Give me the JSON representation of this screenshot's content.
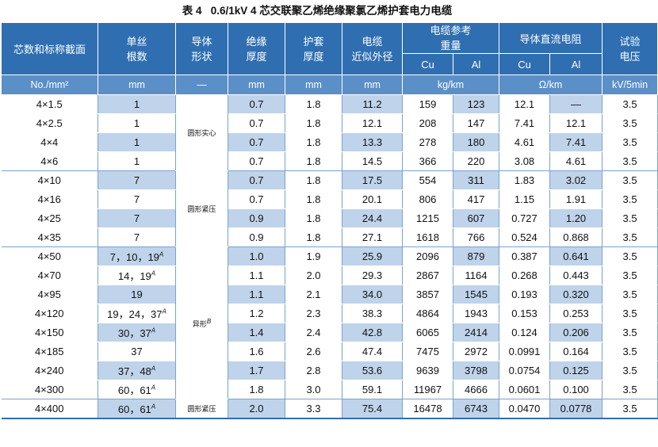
{
  "caption": {
    "label": "表 4",
    "title": "0.6/1kV 4 芯交联聚乙烯绝缘聚氯乙烯护套电力电缆"
  },
  "header": {
    "core_section": "芯数和标称截面",
    "wire_count_l1": "单丝",
    "wire_count_l2": "根数",
    "conductor_shape_l1": "导体",
    "conductor_shape_l2": "形状",
    "insulation_l1": "绝缘",
    "insulation_l2": "厚度",
    "sheath_l1": "护套",
    "sheath_l2": "厚度",
    "diameter_l1": "电缆",
    "diameter_l2": "近似外径",
    "weight_l1": "电缆参考",
    "weight_l2": "重量",
    "resistance": "导体直流电阻",
    "voltage_l1": "试验",
    "voltage_l2": "电压",
    "cu": "Cu",
    "al": "Al",
    "cu2": "Cu",
    "al2": "Al"
  },
  "units": {
    "section": "No./mm²",
    "wire_count": "mm",
    "shape": "—",
    "insulation": "mm",
    "sheath": "mm",
    "diameter": "mm",
    "weight": "kg/km",
    "resistance": "Ω/km",
    "voltage": "kV/5min"
  },
  "shape_labels": {
    "solid": "圆形实心",
    "compact": "圆形紧压",
    "sector": "异形",
    "sector_sup": "B",
    "compact_last": "圆形紧压"
  },
  "rows": [
    {
      "section": "4×1.5",
      "wires": "1",
      "wsup": "",
      "ins": "0.7",
      "sh": "1.8",
      "dia": "11.2",
      "cu": "159",
      "al": "123",
      "rcu": "12.1",
      "ral": "—",
      "v": "3.5"
    },
    {
      "section": "4×2.5",
      "wires": "1",
      "wsup": "",
      "ins": "0.7",
      "sh": "1.8",
      "dia": "12.1",
      "cu": "208",
      "al": "147",
      "rcu": "7.41",
      "ral": "12.1",
      "v": "3.5"
    },
    {
      "section": "4×4",
      "wires": "1",
      "wsup": "",
      "ins": "0.7",
      "sh": "1.8",
      "dia": "13.3",
      "cu": "278",
      "al": "180",
      "rcu": "4.61",
      "ral": "7.41",
      "v": "3.5"
    },
    {
      "section": "4×6",
      "wires": "1",
      "wsup": "",
      "ins": "0.7",
      "sh": "1.8",
      "dia": "14.5",
      "cu": "366",
      "al": "220",
      "rcu": "3.08",
      "ral": "4.61",
      "v": "3.5"
    },
    {
      "section": "4×10",
      "wires": "7",
      "wsup": "",
      "ins": "0.7",
      "sh": "1.8",
      "dia": "17.5",
      "cu": "554",
      "al": "311",
      "rcu": "1.83",
      "ral": "3.02",
      "v": "3.5"
    },
    {
      "section": "4×16",
      "wires": "7",
      "wsup": "",
      "ins": "0.7",
      "sh": "1.8",
      "dia": "20.1",
      "cu": "806",
      "al": "417",
      "rcu": "1.15",
      "ral": "1.91",
      "v": "3.5"
    },
    {
      "section": "4×25",
      "wires": "7",
      "wsup": "",
      "ins": "0.9",
      "sh": "1.8",
      "dia": "24.4",
      "cu": "1215",
      "al": "607",
      "rcu": "0.727",
      "ral": "1.20",
      "v": "3.5"
    },
    {
      "section": "4×35",
      "wires": "7",
      "wsup": "",
      "ins": "0.9",
      "sh": "1.8",
      "dia": "27.1",
      "cu": "1618",
      "al": "766",
      "rcu": "0.524",
      "ral": "0.868",
      "v": "3.5"
    },
    {
      "section": "4×50",
      "wires": "7，10，19",
      "wsup": "A",
      "ins": "1.0",
      "sh": "1.9",
      "dia": "25.9",
      "cu": "2096",
      "al": "879",
      "rcu": "0.387",
      "ral": "0.641",
      "v": "3.5"
    },
    {
      "section": "4×70",
      "wires": "14，19",
      "wsup": "A",
      "ins": "1.1",
      "sh": "2.0",
      "dia": "29.3",
      "cu": "2867",
      "al": "1164",
      "rcu": "0.268",
      "ral": "0.443",
      "v": "3.5"
    },
    {
      "section": "4×95",
      "wires": "19",
      "wsup": "",
      "ins": "1.1",
      "sh": "2.1",
      "dia": "34.0",
      "cu": "3857",
      "al": "1545",
      "rcu": "0.193",
      "ral": "0.320",
      "v": "3.5"
    },
    {
      "section": "4×120",
      "wires": "19，24，37",
      "wsup": "A",
      "ins": "1.2",
      "sh": "2.3",
      "dia": "38.3",
      "cu": "4864",
      "al": "1943",
      "rcu": "0.153",
      "ral": "0.253",
      "v": "3.5"
    },
    {
      "section": "4×150",
      "wires": "30，37",
      "wsup": "A",
      "ins": "1.4",
      "sh": "2.4",
      "dia": "42.8",
      "cu": "6065",
      "al": "2414",
      "rcu": "0.124",
      "ral": "0.206",
      "v": "3.5"
    },
    {
      "section": "4×185",
      "wires": "37",
      "wsup": "",
      "ins": "1.6",
      "sh": "2.6",
      "dia": "47.4",
      "cu": "7475",
      "al": "2972",
      "rcu": "0.0991",
      "ral": "0.164",
      "v": "3.5"
    },
    {
      "section": "4×240",
      "wires": "37，48",
      "wsup": "A",
      "ins": "1.7",
      "sh": "2.8",
      "dia": "53.6",
      "cu": "9639",
      "al": "3798",
      "rcu": "0.0754",
      "ral": "0.125",
      "v": "3.5"
    },
    {
      "section": "4×300",
      "wires": "60，61",
      "wsup": "A",
      "ins": "1.8",
      "sh": "3.0",
      "dia": "59.1",
      "cu": "11967",
      "al": "4666",
      "rcu": "0.0601",
      "ral": "0.100",
      "v": "3.5"
    },
    {
      "section": "4×400",
      "wires": "60，61",
      "wsup": "A",
      "ins": "2.0",
      "sh": "3.3",
      "dia": "75.4",
      "cu": "16478",
      "al": "6743",
      "rcu": "0.0470",
      "ral": "0.0778",
      "v": "3.5"
    }
  ],
  "colors": {
    "header_blue": "#2f6fb1",
    "unit_row_blue": "#5b8fc7",
    "shaded_cell": "#bfd3ea"
  }
}
